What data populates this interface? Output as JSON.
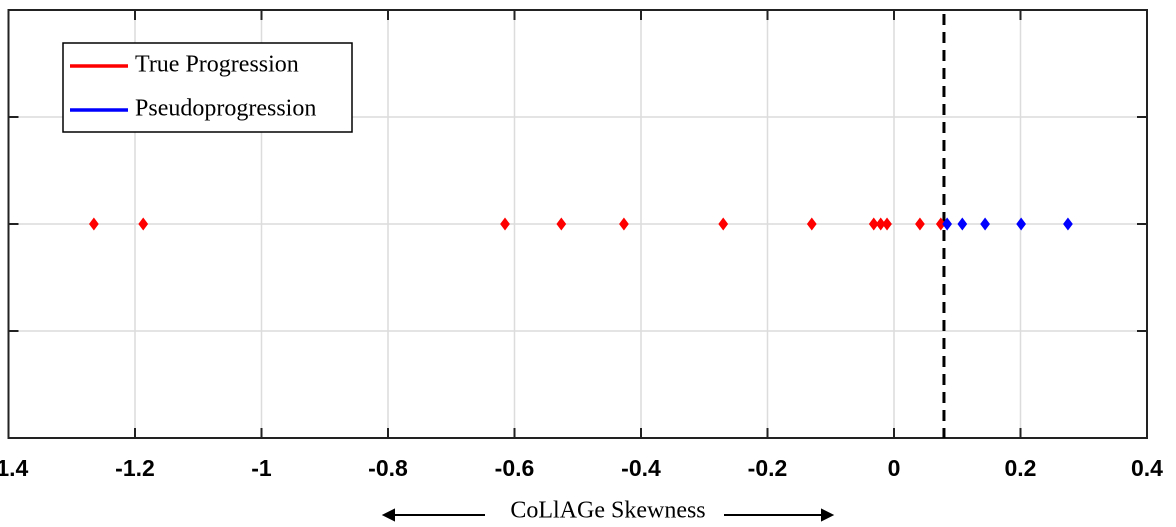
{
  "chart_data": {
    "type": "scatter",
    "xlabel": "CoLlAGe Skewness",
    "xlim": [
      -1.4,
      0.4
    ],
    "xticks": [
      -1.4,
      -1.2,
      -1,
      -0.8,
      -0.6,
      -0.4,
      -0.2,
      0,
      0.2,
      0.4
    ],
    "ylim": [
      0,
      4
    ],
    "yticks": [
      0,
      1,
      2,
      3,
      4
    ],
    "grid": true,
    "legend": "upper left",
    "threshold": 0.079,
    "series": [
      {
        "name": "True Progression",
        "color": "#ff0000",
        "x": [
          -1.265,
          -1.187,
          -0.615,
          -0.526,
          -0.427,
          -0.27,
          -0.13,
          -0.032,
          -0.021,
          -0.011,
          0.041,
          0.074
        ],
        "values": [
          2,
          2,
          2,
          2,
          2,
          2,
          2,
          2,
          2,
          2,
          2,
          2
        ]
      },
      {
        "name": "Pseudoprogression",
        "color": "#0000ff",
        "x": [
          0.084,
          0.108,
          0.144,
          0.201,
          0.275
        ],
        "values": [
          2,
          2,
          2,
          2,
          2
        ]
      }
    ]
  }
}
